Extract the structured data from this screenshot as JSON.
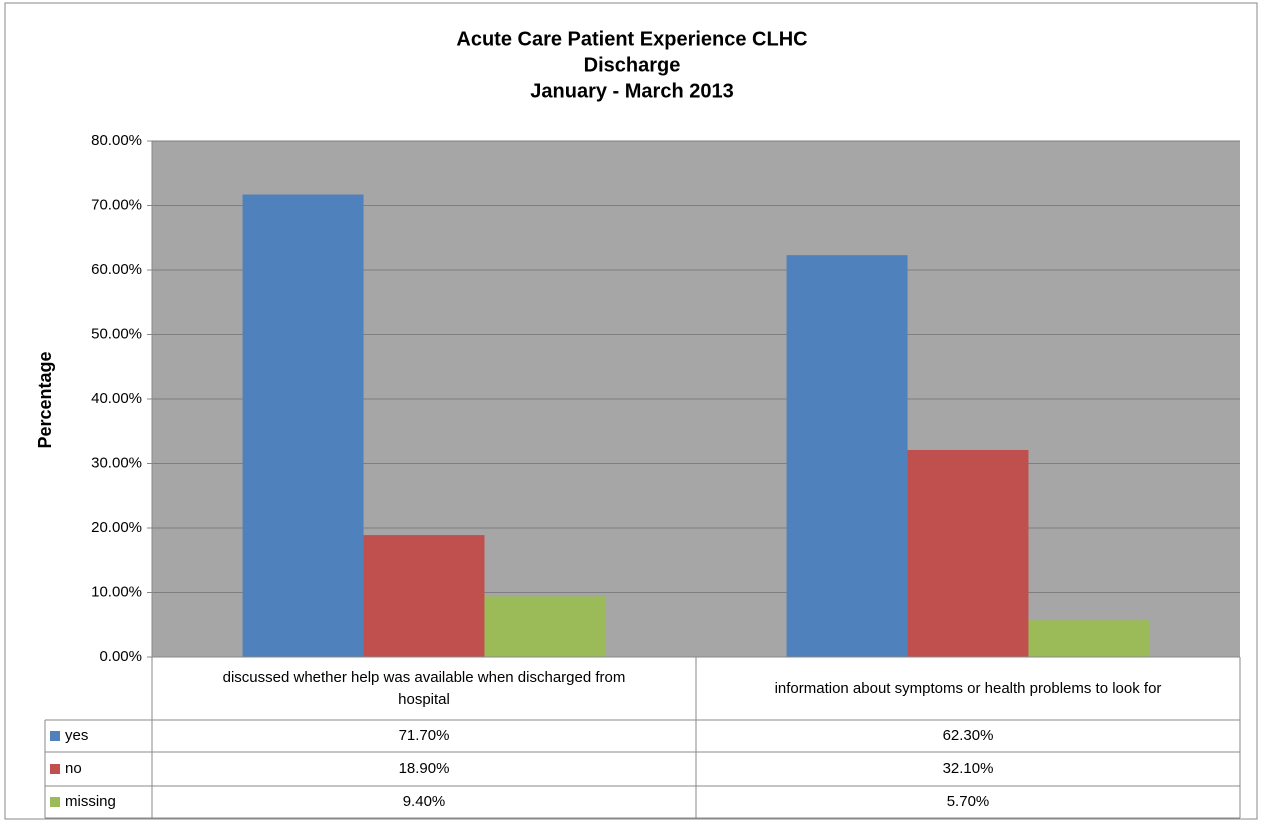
{
  "chart_data": {
    "type": "bar",
    "title_lines": [
      "Acute Care Patient Experience CLHC",
      "Discharge",
      "January - March 2013"
    ],
    "y_label": "Percentage",
    "categories": [
      "discussed whether help was available when discharged from hospital",
      "information about symptoms or health problems to look for"
    ],
    "series": [
      {
        "name": "yes",
        "color": "#4f81bd",
        "values": [
          71.7,
          62.3
        ],
        "value_labels": [
          "71.70%",
          "62.30%"
        ]
      },
      {
        "name": "no",
        "color": "#c0504d",
        "values": [
          18.9,
          32.1
        ],
        "value_labels": [
          "18.90%",
          "32.10%"
        ]
      },
      {
        "name": "missing",
        "color": "#9bbb59",
        "values": [
          9.4,
          5.7
        ],
        "value_labels": [
          "9.40%",
          "5.70%"
        ]
      }
    ],
    "ylim": [
      0,
      80
    ],
    "yticks": [
      {
        "value": 0,
        "label": "0.00%"
      },
      {
        "value": 10,
        "label": "10.00%"
      },
      {
        "value": 20,
        "label": "20.00%"
      },
      {
        "value": 30,
        "label": "30.00%"
      },
      {
        "value": 40,
        "label": "40.00%"
      },
      {
        "value": 50,
        "label": "50.00%"
      },
      {
        "value": 60,
        "label": "60.00%"
      },
      {
        "value": 70,
        "label": "70.00%"
      },
      {
        "value": 80,
        "label": "80.00%"
      }
    ],
    "grid": true,
    "plot_background": "#a6a6a6"
  }
}
